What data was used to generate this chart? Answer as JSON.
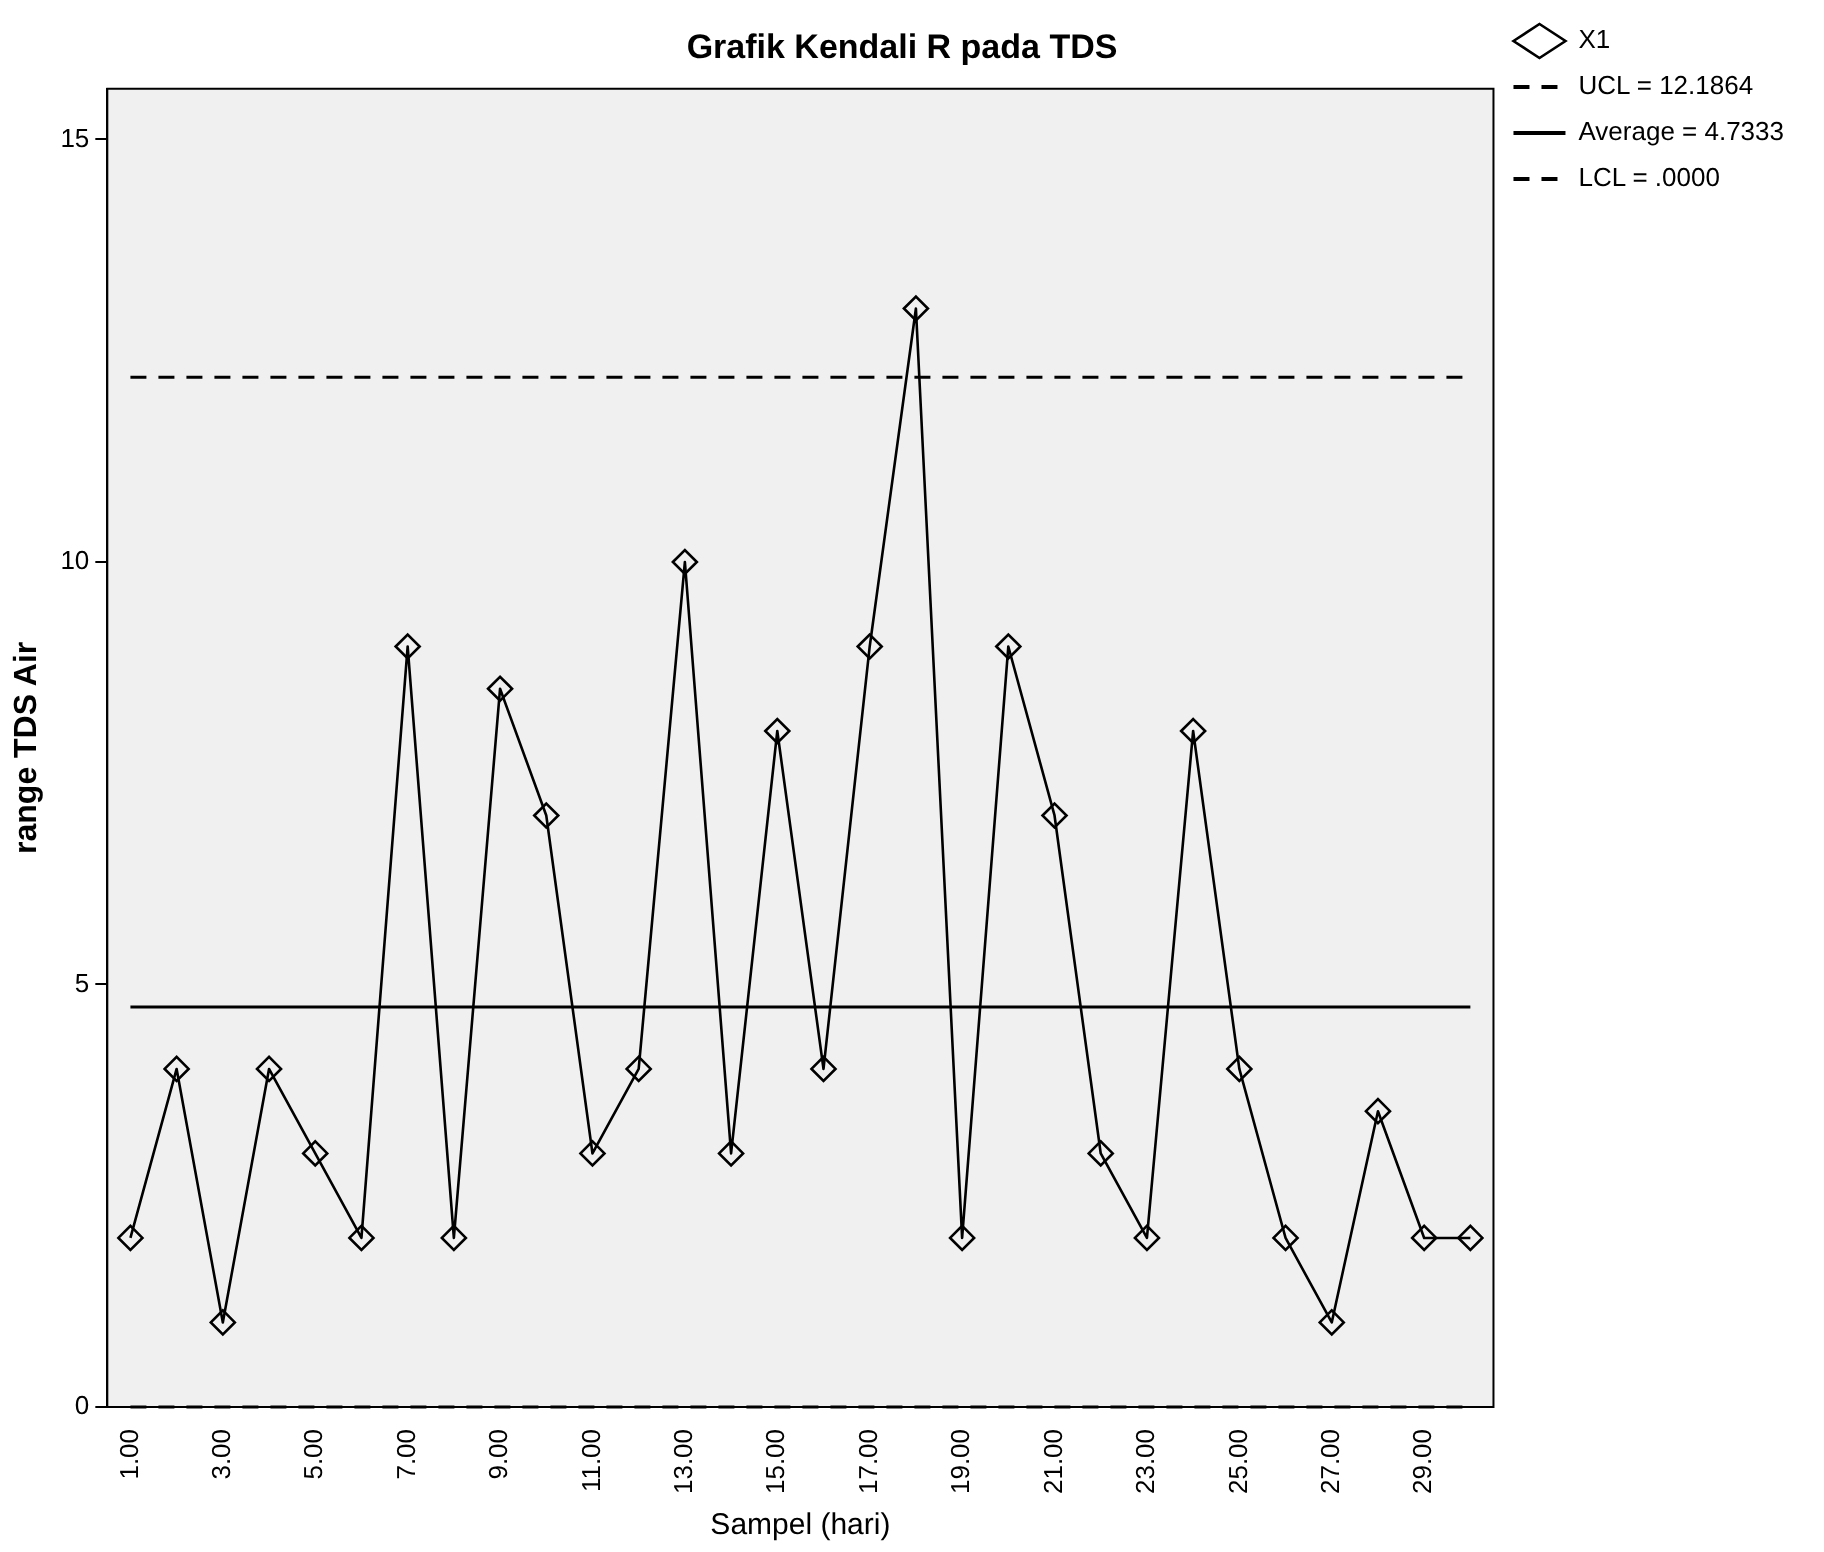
{
  "chart_data": {
    "type": "line",
    "title": "Grafik Kendali R pada TDS",
    "xlabel": "Sampel (hari)",
    "ylabel": "range TDS Air",
    "categories": [
      "1.00",
      null,
      "3.00",
      null,
      "5.00",
      null,
      "7.00",
      null,
      "9.00",
      null,
      "11.00",
      null,
      "13.00",
      null,
      "15.00",
      null,
      "17.00",
      null,
      "19.00",
      null,
      "21.00",
      null,
      "23.00",
      null,
      "25.00",
      null,
      "27.00",
      null,
      "29.00",
      null
    ],
    "series": [
      {
        "name": "X1",
        "color": "#000000",
        "values": [
          2,
          4,
          1,
          4,
          3,
          2,
          9,
          2,
          8.5,
          7,
          3,
          4,
          10,
          3,
          8,
          4,
          9,
          13,
          2,
          9,
          7,
          3,
          2,
          8,
          4,
          2,
          1,
          3.5,
          2,
          2
        ]
      }
    ],
    "ref_lines": [
      {
        "axis": "y",
        "value": 12.1864,
        "label": "UCL = 12.1864",
        "line_style": "dashed",
        "color": "#000000"
      },
      {
        "axis": "y",
        "value": 4.7333,
        "label": "Average = 4.7333",
        "line_style": "solid",
        "color": "#000000"
      },
      {
        "axis": "y",
        "value": 0,
        "label": "LCL = .0000",
        "line_style": "dashed",
        "color": "#000000"
      }
    ],
    "ylim": [
      0,
      15.6
    ],
    "yticks": [
      0,
      5,
      10,
      15
    ],
    "grid": false,
    "legend": "top right",
    "marker": "diamond",
    "line_style": "solid"
  }
}
